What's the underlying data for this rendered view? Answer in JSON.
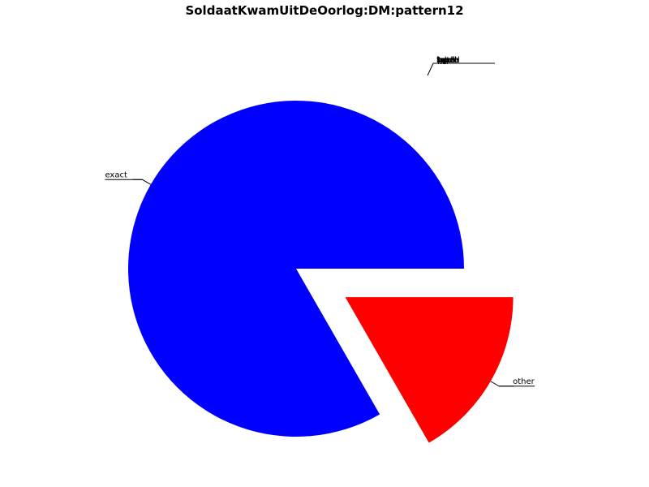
{
  "chart_data": {
    "type": "pie",
    "title": "SoldaatKwamUitDeOorlog:DM:pattern12",
    "slices": [
      {
        "label": "exact",
        "value": 83.3,
        "color": "#0000ff",
        "exploded": false
      },
      {
        "label": "other",
        "value": 16.7,
        "color": "#ff0000",
        "exploded": true
      }
    ],
    "stacked_labels": [
      "batch",
      "label",
      "tuple",
      "typed",
      "bpel",
      "open",
      "lop",
      "ppd"
    ],
    "start_angle_deg": 0,
    "direction": "counterclockwise"
  }
}
